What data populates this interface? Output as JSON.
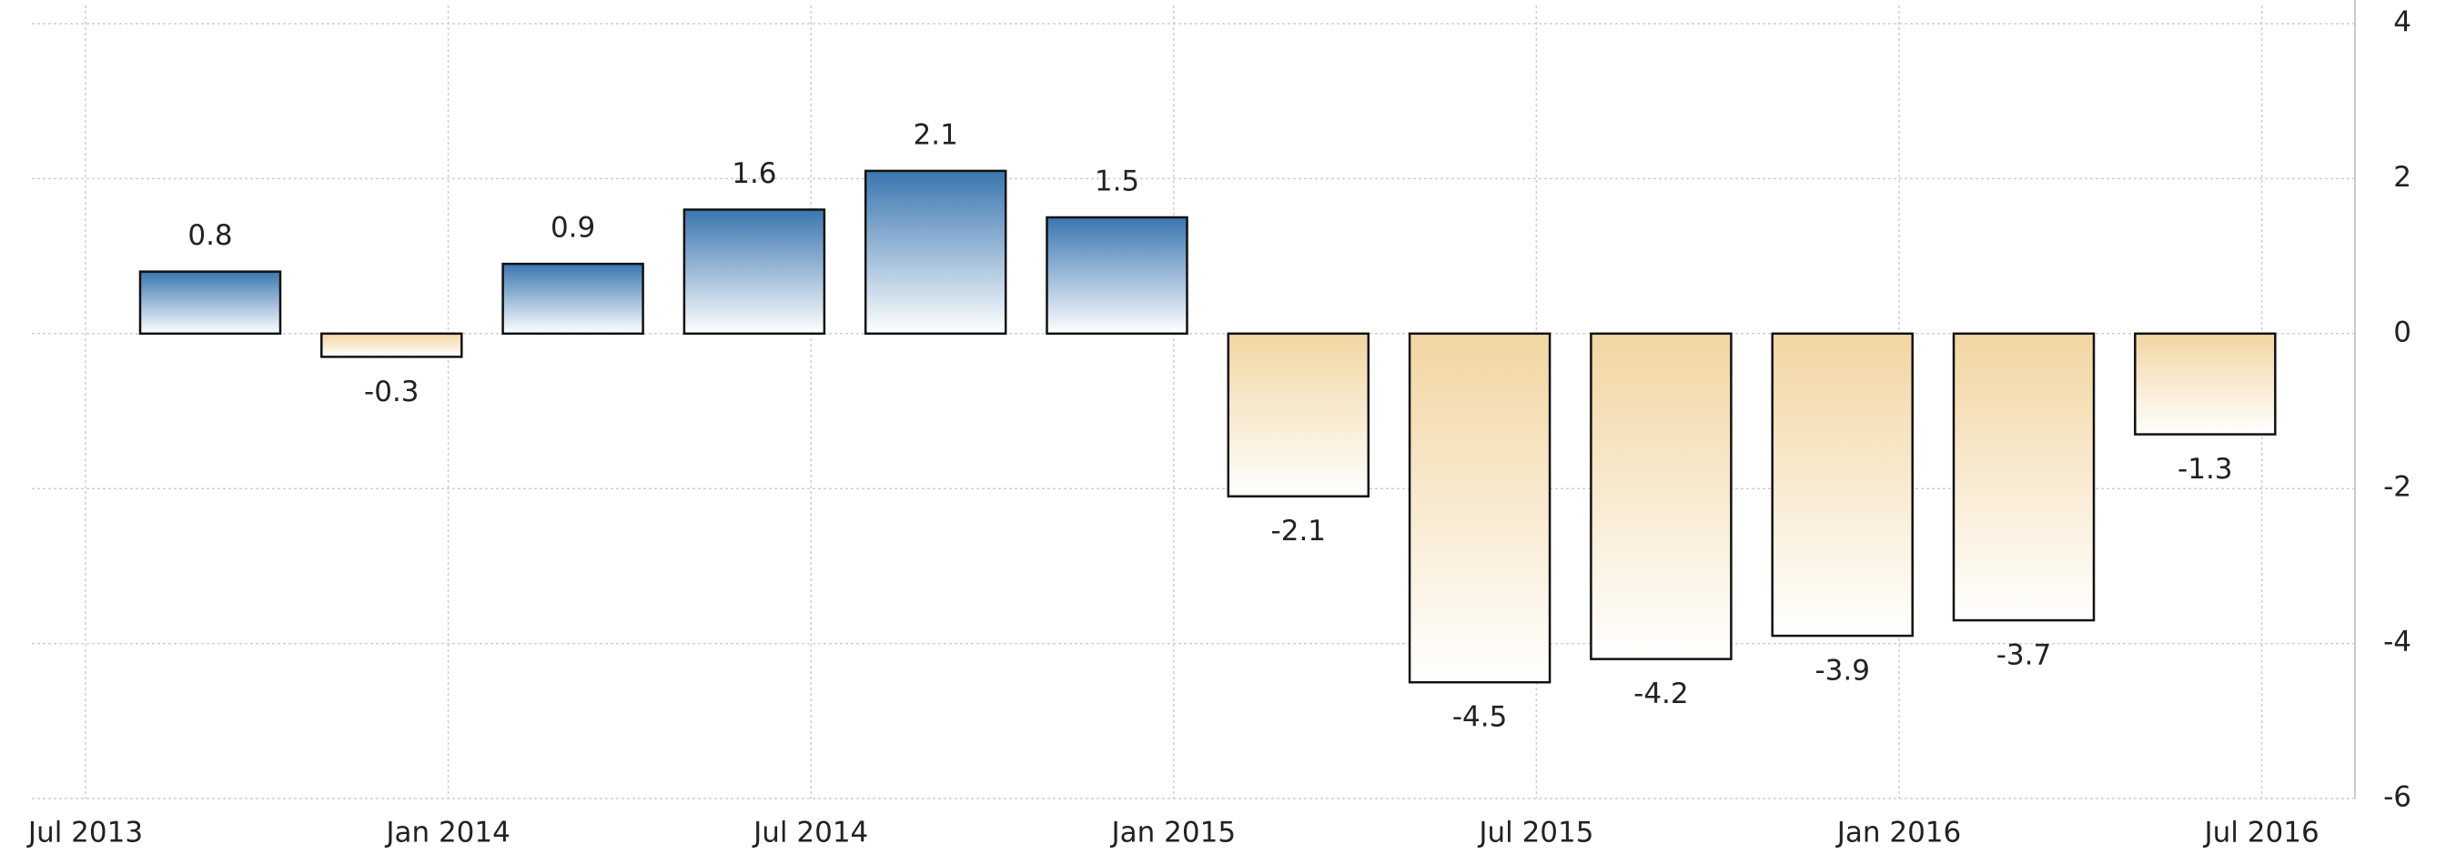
{
  "chart_data": {
    "type": "bar",
    "categories": [
      null,
      null,
      null,
      null,
      null,
      null,
      null,
      null,
      null,
      null,
      null,
      null
    ],
    "values": [
      0.8,
      -0.3,
      0.9,
      1.6,
      2.1,
      1.5,
      -2.1,
      -4.5,
      -4.2,
      -3.9,
      -3.7,
      -1.3
    ],
    "positive_color": "#3a76b0",
    "negative_color": "#f2d6a2",
    "xtick_labels": [
      "Jul 2013",
      "Jan 2014",
      "Jul 2014",
      "Jan 2015",
      "Jul 2015",
      "Jan 2016",
      "Jul 2016"
    ],
    "ylim": [
      -6,
      4
    ],
    "yticks": [
      -6,
      -4,
      -2,
      0,
      2,
      4
    ],
    "grid": true
  }
}
